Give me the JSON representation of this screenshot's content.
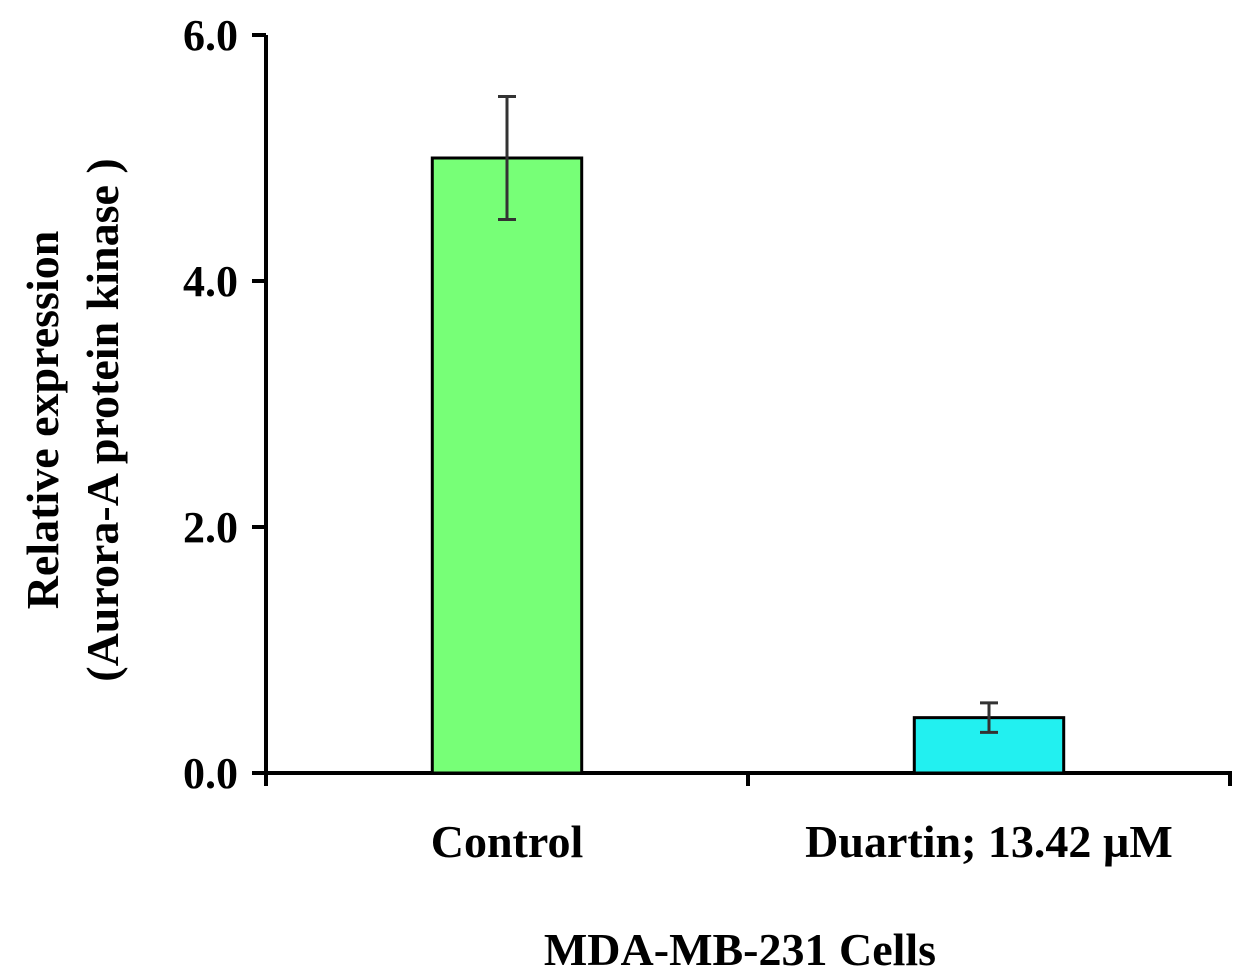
{
  "chart_data": {
    "type": "bar",
    "categories": [
      "Control",
      "Duartin; 13.42 µM"
    ],
    "values": [
      5.0,
      0.45
    ],
    "errors": [
      0.5,
      0.12
    ],
    "colors": [
      "#77FF77",
      "#22F0F0"
    ],
    "xlabel": "MDA-MB-231 Cells",
    "ylabel_line1": "Relative expression",
    "ylabel_line2": "(Aurora-A protein kinase )",
    "ylim": [
      0,
      6
    ],
    "yticks": [
      0,
      2,
      4,
      6
    ],
    "ytick_labels": [
      "0.0",
      "2.0",
      "4.0",
      "6.0"
    ],
    "grid": false,
    "legend": "none"
  }
}
